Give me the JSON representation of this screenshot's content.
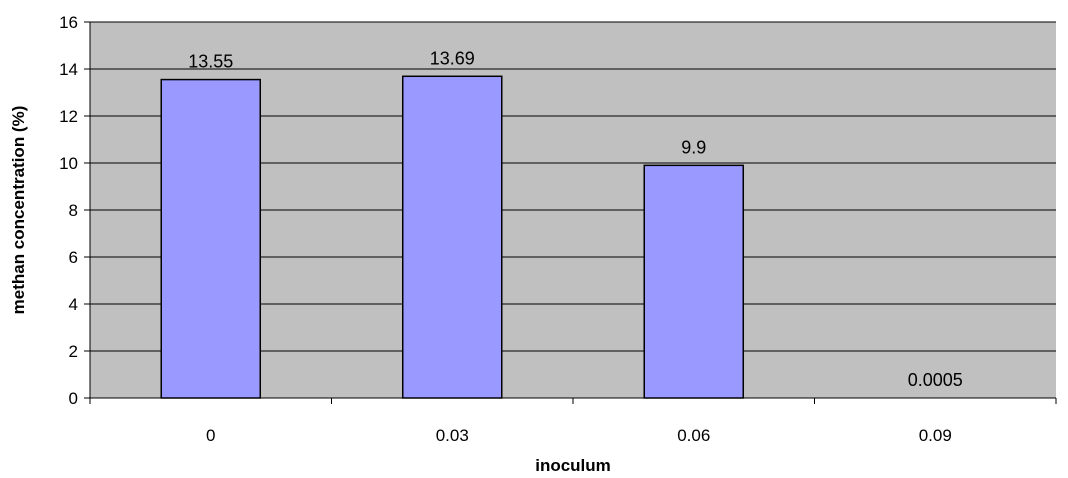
{
  "chart_data": {
    "type": "bar",
    "title": "",
    "xlabel": "inoculum",
    "ylabel": "methan concentration (%)",
    "categories": [
      "0",
      "0.03",
      "0.06",
      "0.09"
    ],
    "values": [
      13.55,
      13.69,
      9.9,
      0.0005
    ],
    "data_labels": [
      "13.55",
      "13.69",
      "9.9",
      "0.0005"
    ],
    "ylim": [
      0,
      16
    ],
    "yticks": [
      0,
      2,
      4,
      6,
      8,
      10,
      12,
      14,
      16
    ],
    "grid": true,
    "legend": "none",
    "colors": {
      "bar_fill": "#9999ff",
      "bar_stroke": "#000000",
      "plot_background": "#c0c0c0",
      "gridline": "#000000"
    }
  }
}
